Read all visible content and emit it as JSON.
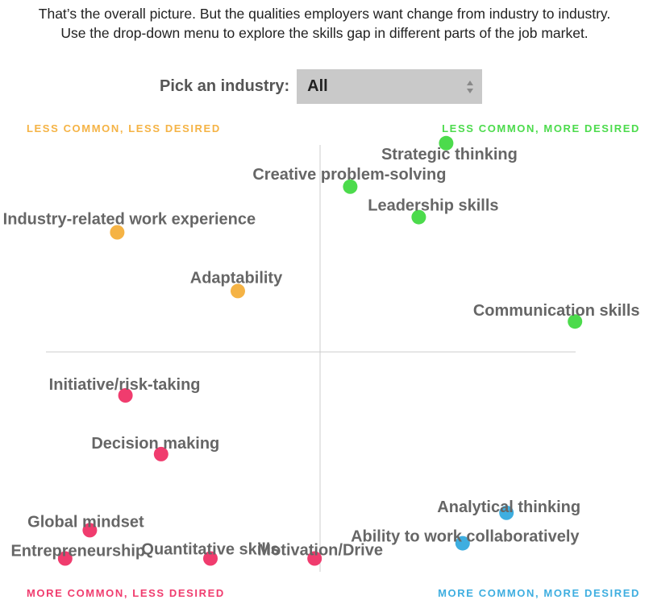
{
  "intro": {
    "text": "That’s the overall picture. But the qualities employers want change from industry to industry. Use the drop-down menu to explore the skills gap in different parts of the job market."
  },
  "picker": {
    "label": "Pick an industry:",
    "selected": "All"
  },
  "colors": {
    "less_less": "#f5b345",
    "less_more": "#4cdb4c",
    "more_less": "#f03c6e",
    "more_more": "#3eaee0",
    "axis": "#cccccc",
    "label": "#666666"
  },
  "chart_data": {
    "type": "scatter",
    "x_range": [
      -1,
      1
    ],
    "y_range": [
      -1,
      1
    ],
    "quadrants": [
      {
        "key": "less_less",
        "text": "LESS COMMON, LESS DESIRED",
        "position": "top-left"
      },
      {
        "key": "less_more",
        "text": "LESS COMMON, MORE DESIRED",
        "position": "top-right"
      },
      {
        "key": "more_less",
        "text": "MORE COMMON, LESS DESIRED",
        "position": "bottom-left"
      },
      {
        "key": "more_more",
        "text": "MORE COMMON, MORE DESIRED",
        "position": "bottom-right"
      }
    ],
    "points": [
      {
        "label": "Strategic thinking",
        "x": 0.46,
        "y": 0.96,
        "group": "less_more"
      },
      {
        "label": "Creative problem-solving",
        "x": 0.11,
        "y": 0.76,
        "group": "less_more"
      },
      {
        "label": "Leadership skills",
        "x": 0.36,
        "y": 0.62,
        "group": "less_more"
      },
      {
        "label": "Communication skills",
        "x": 0.93,
        "y": 0.14,
        "group": "less_more"
      },
      {
        "label": "Industry-related work experience",
        "x": -0.74,
        "y": 0.55,
        "group": "less_less"
      },
      {
        "label": "Adaptability",
        "x": -0.3,
        "y": 0.28,
        "group": "less_less"
      },
      {
        "label": "Initiative/risk-taking",
        "x": -0.71,
        "y": -0.2,
        "group": "more_less"
      },
      {
        "label": "Decision making",
        "x": -0.58,
        "y": -0.47,
        "group": "more_less"
      },
      {
        "label": "Global mindset",
        "x": -0.84,
        "y": -0.82,
        "group": "more_less"
      },
      {
        "label": "Entrepreneurship",
        "x": -0.93,
        "y": -0.95,
        "group": "more_less"
      },
      {
        "label": "Quantitative skills",
        "x": -0.4,
        "y": -0.95,
        "group": "more_less"
      },
      {
        "label": "Motivation/Drive",
        "x": -0.02,
        "y": -0.95,
        "group": "more_less"
      },
      {
        "label": "Analytical thinking",
        "x": 0.68,
        "y": -0.74,
        "group": "more_more"
      },
      {
        "label": "Ability to work collaboratively",
        "x": 0.52,
        "y": -0.88,
        "group": "more_more"
      }
    ]
  }
}
